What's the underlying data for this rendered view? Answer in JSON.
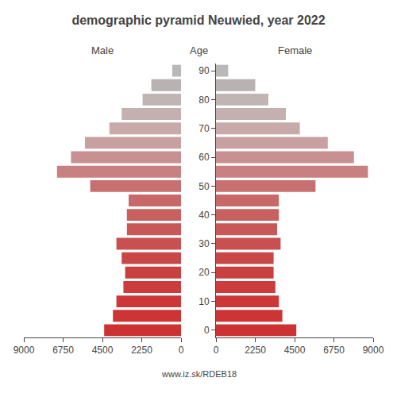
{
  "chart_data": {
    "type": "bar",
    "orientation": "horizontal",
    "title": "demographic pyramid Neuwied, year 2022",
    "ylabel": "Age",
    "annotations": [
      "www.iz.sk/RDEB18"
    ],
    "categories": [
      "0",
      null,
      "10",
      null,
      "20",
      null,
      "30",
      null,
      "40",
      null,
      "50",
      null,
      "60",
      null,
      "70",
      null,
      "80",
      null,
      "90"
    ],
    "series": [
      {
        "name": "Male",
        "values": [
          4400,
          3900,
          3700,
          3300,
          3200,
          3400,
          3700,
          3100,
          3100,
          3000,
          5200,
          7100,
          6300,
          5500,
          4100,
          3400,
          2200,
          1700,
          500
        ]
      },
      {
        "name": "Female",
        "values": [
          4600,
          3800,
          3600,
          3400,
          3300,
          3300,
          3700,
          3500,
          3600,
          3600,
          5700,
          8700,
          7900,
          6400,
          4800,
          4000,
          3000,
          2250,
          700
        ]
      }
    ],
    "colors": [
      "#cd3232",
      "#cd3535",
      "#cc3838",
      "#cc3c3c",
      "#c84040",
      "#c84848",
      "#c85050",
      "#c85858",
      "#c86060",
      "#c86868",
      "#c87070",
      "#c88080",
      "#c89090",
      "#c8a0a0",
      "#c8aaaa",
      "#c4b0b0",
      "#c0b4b4",
      "#b8b2b2",
      "#b8b8b8"
    ],
    "xlim": [
      0,
      9000
    ],
    "xticks": [
      0,
      2250,
      4500,
      6750,
      9000
    ],
    "grid": false
  }
}
